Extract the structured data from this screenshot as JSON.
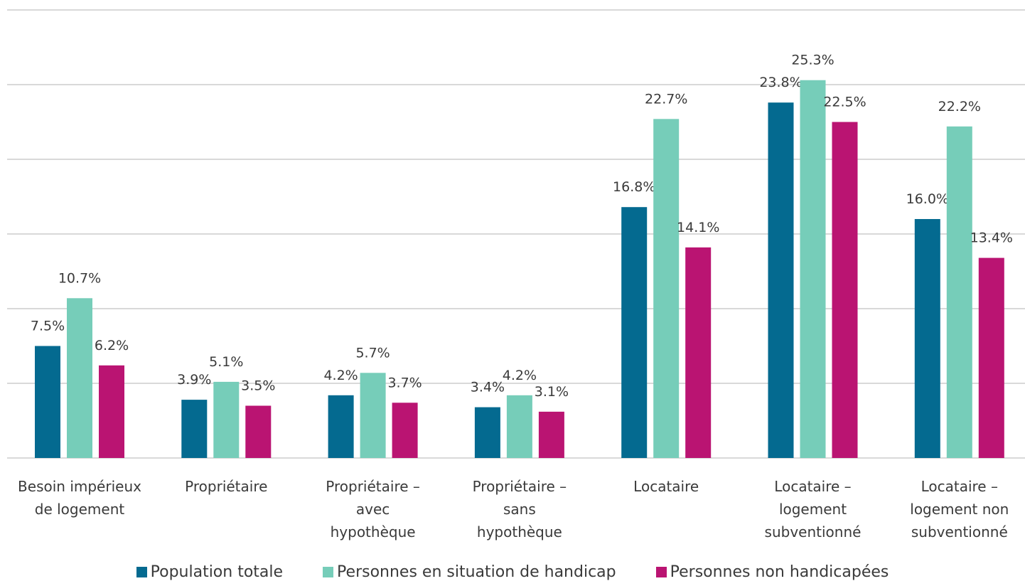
{
  "chart_data": {
    "type": "bar",
    "categories": [
      "Besoin impérieux\nde logement",
      "Propriétaire",
      "Propriétaire –\navec\nhypothèque",
      "Propriétaire –\nsans\nhypothèque",
      "Locataire",
      "Locataire –\nlogement\nsubventionné",
      "Locataire –\nlogement non\nsubventionné"
    ],
    "series": [
      {
        "name": "Population totale",
        "color": "#046a90",
        "values": [
          7.5,
          3.9,
          4.2,
          3.4,
          16.8,
          23.8,
          16.0
        ],
        "labels": [
          "7.5%",
          "3.9%",
          "4.2%",
          "3.4%",
          "16.8%",
          "23.8%",
          "16.0%"
        ]
      },
      {
        "name": "Personnes en situation de handicap",
        "color": "#76cdb9",
        "values": [
          10.7,
          5.1,
          5.7,
          4.2,
          22.7,
          25.3,
          22.2
        ],
        "labels": [
          "10.7%",
          "5.1%",
          "5.7%",
          "4.2%",
          "22.7%",
          "25.3%",
          "22.2%"
        ]
      },
      {
        "name": "Personnes non handicapées",
        "color": "#ba1472",
        "values": [
          6.2,
          3.5,
          3.7,
          3.1,
          14.1,
          22.5,
          13.4
        ],
        "labels": [
          "6.2%",
          "3.5%",
          "3.7%",
          "3.1%",
          "14.1%",
          "22.5%",
          "13.4%"
        ]
      }
    ],
    "ylim": [
      0,
      30
    ],
    "gridlines": true,
    "legend_position": "bottom"
  }
}
